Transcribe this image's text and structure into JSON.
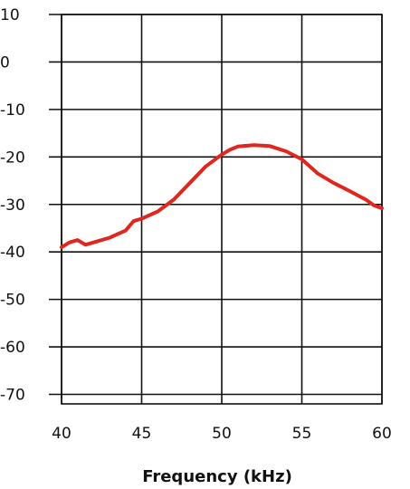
{
  "chart_data": {
    "type": "line",
    "title": "",
    "xlabel": "Frequency (kHz)",
    "ylabel": "",
    "xlim": [
      40,
      60
    ],
    "ylim": [
      -72,
      10
    ],
    "xticks": [
      40,
      45,
      50,
      55,
      60
    ],
    "yticks": [
      10,
      0,
      -10,
      -20,
      -30,
      -40,
      -50,
      -60,
      -70
    ],
    "grid": true,
    "series": [
      {
        "color": "#e0261f",
        "points": [
          [
            40.0,
            -39.0
          ],
          [
            40.5,
            -38.0
          ],
          [
            41.0,
            -37.5
          ],
          [
            41.5,
            -38.5
          ],
          [
            42.0,
            -38.0
          ],
          [
            43.0,
            -37.0
          ],
          [
            44.0,
            -35.5
          ],
          [
            44.5,
            -33.5
          ],
          [
            45.0,
            -33.0
          ],
          [
            46.0,
            -31.5
          ],
          [
            47.0,
            -29.0
          ],
          [
            48.0,
            -25.5
          ],
          [
            49.0,
            -22.0
          ],
          [
            50.0,
            -19.5
          ],
          [
            50.5,
            -18.5
          ],
          [
            51.0,
            -17.8
          ],
          [
            52.0,
            -17.5
          ],
          [
            53.0,
            -17.7
          ],
          [
            54.0,
            -18.8
          ],
          [
            55.0,
            -20.5
          ],
          [
            56.0,
            -23.5
          ],
          [
            57.0,
            -25.5
          ],
          [
            58.0,
            -27.2
          ],
          [
            59.0,
            -29.0
          ],
          [
            59.5,
            -30.2
          ],
          [
            60.0,
            -30.8
          ]
        ]
      }
    ]
  }
}
